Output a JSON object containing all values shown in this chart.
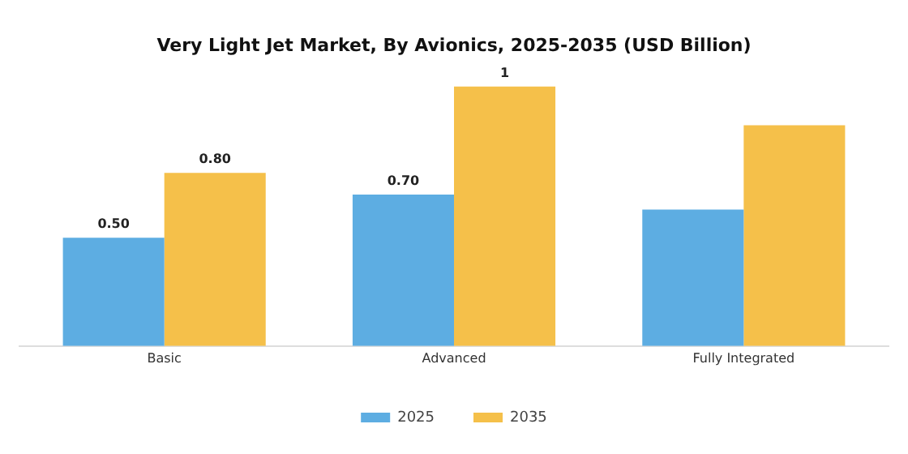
{
  "chart_data": {
    "type": "bar",
    "title": "Very Light Jet Market, By Avionics, 2025-2035 (USD Billion)",
    "categories": [
      "Basic",
      "Advanced",
      "Fully Integrated"
    ],
    "series": [
      {
        "name": "2025",
        "color": "#5dade2",
        "values": [
          0.5,
          0.7,
          0.63
        ],
        "value_labels": [
          "0.50",
          "0.70",
          null
        ]
      },
      {
        "name": "2035",
        "color": "#f5c04a",
        "values": [
          0.8,
          1.2,
          1.02
        ],
        "value_labels": [
          "0.80",
          "1",
          null
        ]
      }
    ],
    "legend": "bottom",
    "grid": false
  }
}
